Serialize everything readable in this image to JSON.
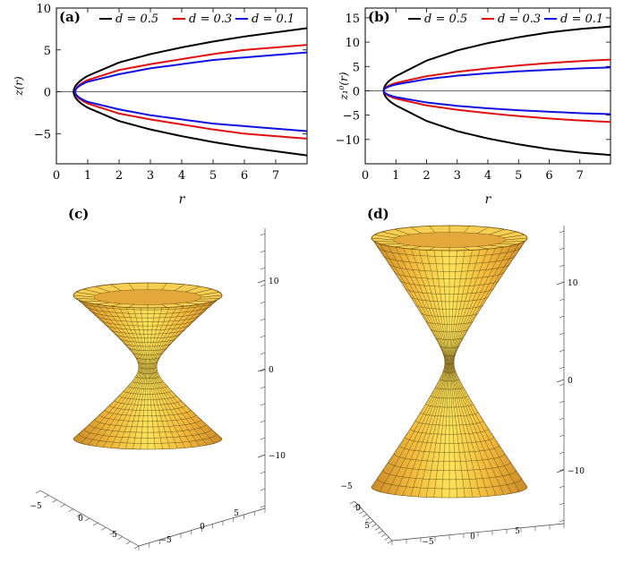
{
  "chart_data": [
    {
      "type": "line",
      "panel_label": "(a)",
      "xlabel": "r",
      "ylabel": "z(r)",
      "xlim": [
        0,
        8
      ],
      "ylim": [
        -8.6,
        10
      ],
      "xticks": [
        0,
        1,
        2,
        3,
        4,
        5,
        6,
        7
      ],
      "yticks": [
        -5,
        0,
        5,
        10
      ],
      "legend_position": "top",
      "series": [
        {
          "name": "d = 0.5",
          "color": "#000000",
          "r0": 0.55,
          "x": [
            0.55,
            1,
            2,
            3,
            4,
            5,
            6,
            7,
            8
          ],
          "y": [
            0,
            1.9,
            3.5,
            4.5,
            5.3,
            6.0,
            6.6,
            7.1,
            7.6
          ]
        },
        {
          "name": "d = 0.3",
          "color": "#e01010",
          "r0": 0.6,
          "x": [
            0.6,
            1,
            2,
            3,
            4,
            5,
            6,
            7,
            8
          ],
          "y": [
            0,
            1.4,
            2.6,
            3.3,
            3.9,
            4.5,
            5.0,
            5.3,
            5.6
          ]
        },
        {
          "name": "d = 0.1",
          "color": "#1010e0",
          "r0": 0.6,
          "x": [
            0.6,
            1,
            2,
            3,
            4,
            5,
            6,
            7,
            8
          ],
          "y": [
            0,
            1.2,
            2.1,
            2.8,
            3.3,
            3.8,
            4.1,
            4.4,
            4.7
          ]
        }
      ]
    },
    {
      "type": "line",
      "panel_label": "(b)",
      "xlabel": "r",
      "ylabel": "z₁⁰(r)",
      "xlim": [
        0,
        8
      ],
      "ylim": [
        -15,
        17
      ],
      "xticks": [
        0,
        1,
        2,
        3,
        4,
        5,
        6,
        7
      ],
      "yticks": [
        -10,
        -5,
        0,
        5,
        10,
        15
      ],
      "legend_position": "top",
      "series": [
        {
          "name": "d = 0.5",
          "color": "#000000",
          "r0": 0.6,
          "x": [
            0.6,
            1,
            2,
            3,
            4,
            5,
            6,
            7,
            8
          ],
          "y": [
            0,
            3.0,
            6.2,
            8.3,
            9.8,
            11.0,
            12.0,
            12.7,
            13.2
          ]
        },
        {
          "name": "d = 0.3",
          "color": "#e01010",
          "r0": 0.6,
          "x": [
            0.6,
            1,
            2,
            3,
            4,
            5,
            6,
            7,
            8
          ],
          "y": [
            0,
            1.6,
            3.0,
            3.9,
            4.6,
            5.2,
            5.7,
            6.1,
            6.4
          ]
        },
        {
          "name": "d = 0.1",
          "color": "#1010e0",
          "r0": 0.6,
          "x": [
            0.6,
            1,
            2,
            3,
            4,
            5,
            6,
            7,
            8
          ],
          "y": [
            0,
            1.3,
            2.4,
            3.1,
            3.6,
            4.0,
            4.3,
            4.6,
            4.8
          ]
        }
      ]
    },
    {
      "type": "surface3d",
      "panel_label": "(c)",
      "z_ticks": [
        "10",
        "0",
        "−10"
      ],
      "x_ticks": [
        "−5",
        "0",
        "5"
      ],
      "y_ticks": [
        "−5",
        "0",
        "5"
      ],
      "surface_color": "#f2c040"
    },
    {
      "type": "surface3d",
      "panel_label": "(d)",
      "z_ticks": [
        "10",
        "0",
        "−10"
      ],
      "x_ticks": [
        "−5",
        "0",
        "5"
      ],
      "y_ticks": [
        "−5",
        "0",
        "5"
      ],
      "surface_color": "#f2c040"
    }
  ]
}
